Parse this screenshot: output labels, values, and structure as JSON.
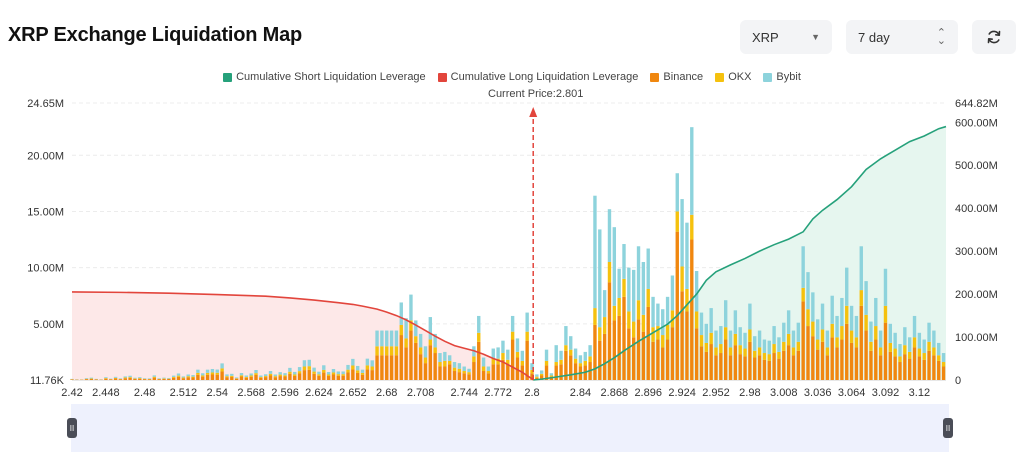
{
  "header": {
    "title": "XRP Exchange Liquidation Map"
  },
  "controls": {
    "coin": {
      "value": "XRP"
    },
    "range": {
      "value": "7 day"
    },
    "refresh_icon": "refresh-icon"
  },
  "colors": {
    "short_line": "#26a17b",
    "short_fill": "#e6f6ef",
    "long_line": "#e2453c",
    "long_fill": "#fde8e8",
    "binance": "#f0870f",
    "okx": "#f5c10e",
    "bybit": "#8dd3dc",
    "price_marker": "#e2453c"
  },
  "chart_data": {
    "type": "bar",
    "legend": [
      {
        "name": "Cumulative Short Liquidation Leverage",
        "color": "#26a17b"
      },
      {
        "name": "Cumulative Long Liquidation Leverage",
        "color": "#e2453c"
      },
      {
        "name": "Binance",
        "color": "#f0870f"
      },
      {
        "name": "OKX",
        "color": "#f5c10e"
      },
      {
        "name": "Bybit",
        "color": "#8dd3dc"
      }
    ],
    "current_price_label": "Current Price:2.801",
    "current_price": 2.801,
    "x_ticks": [
      "2.42",
      "2.448",
      "2.48",
      "2.512",
      "2.54",
      "2.568",
      "2.596",
      "2.624",
      "2.652",
      "2.68",
      "2.708",
      "2.744",
      "2.772",
      "2.8",
      "2.84",
      "2.868",
      "2.896",
      "2.924",
      "2.952",
      "2.98",
      "3.008",
      "3.036",
      "3.064",
      "3.092",
      "3.12"
    ],
    "x_range": [
      2.42,
      3.142
    ],
    "y_left": {
      "ticks": [
        "11.76K",
        "5.00M",
        "10.00M",
        "15.00M",
        "20.00M",
        "24.65M"
      ],
      "tick_values": [
        0.01176,
        5,
        10,
        15,
        20,
        24.65
      ],
      "range": [
        0,
        24.65
      ]
    },
    "y_right": {
      "ticks": [
        "0",
        "100.00M",
        "200.00M",
        "300.00M",
        "400.00M",
        "500.00M",
        "600.00M",
        "644.82M"
      ],
      "tick_values": [
        0,
        100,
        200,
        300,
        400,
        500,
        600,
        644.82
      ],
      "range": [
        0,
        644.82
      ]
    },
    "grid": true,
    "price_step": 0.004,
    "bars": [
      [
        2.42,
        0.05,
        0.02,
        0.03
      ],
      [
        2.424,
        0.03,
        0.01,
        0.02
      ],
      [
        2.428,
        0.03,
        0.01,
        0.01
      ],
      [
        2.432,
        0.08,
        0.03,
        0.06
      ],
      [
        2.436,
        0.09,
        0.04,
        0.08
      ],
      [
        2.44,
        0.05,
        0.02,
        0.03
      ],
      [
        2.444,
        0.03,
        0.01,
        0.02
      ],
      [
        2.448,
        0.12,
        0.05,
        0.08
      ],
      [
        2.452,
        0.06,
        0.02,
        0.04
      ],
      [
        2.456,
        0.14,
        0.05,
        0.09
      ],
      [
        2.46,
        0.07,
        0.03,
        0.05
      ],
      [
        2.464,
        0.16,
        0.06,
        0.1
      ],
      [
        2.468,
        0.19,
        0.07,
        0.12
      ],
      [
        2.472,
        0.1,
        0.04,
        0.06
      ],
      [
        2.476,
        0.12,
        0.05,
        0.08
      ],
      [
        2.48,
        0.08,
        0.03,
        0.05
      ],
      [
        2.484,
        0.07,
        0.03,
        0.05
      ],
      [
        2.488,
        0.21,
        0.08,
        0.12
      ],
      [
        2.492,
        0.08,
        0.03,
        0.05
      ],
      [
        2.496,
        0.1,
        0.04,
        0.07
      ],
      [
        2.5,
        0.09,
        0.03,
        0.06
      ],
      [
        2.504,
        0.2,
        0.07,
        0.12
      ],
      [
        2.508,
        0.29,
        0.1,
        0.19
      ],
      [
        2.512,
        0.16,
        0.06,
        0.1
      ],
      [
        2.516,
        0.25,
        0.09,
        0.15
      ],
      [
        2.52,
        0.22,
        0.08,
        0.14
      ],
      [
        2.524,
        0.46,
        0.17,
        0.29
      ],
      [
        2.528,
        0.3,
        0.11,
        0.19
      ],
      [
        2.532,
        0.46,
        0.17,
        0.29
      ],
      [
        2.536,
        0.49,
        0.18,
        0.31
      ],
      [
        2.54,
        0.47,
        0.17,
        0.29
      ],
      [
        2.544,
        0.76,
        0.27,
        0.45
      ],
      [
        2.548,
        0.25,
        0.09,
        0.16
      ],
      [
        2.552,
        0.27,
        0.1,
        0.18
      ],
      [
        2.556,
        0.12,
        0.04,
        0.07
      ],
      [
        2.56,
        0.31,
        0.11,
        0.2
      ],
      [
        2.564,
        0.2,
        0.07,
        0.13
      ],
      [
        2.568,
        0.29,
        0.11,
        0.18
      ],
      [
        2.572,
        0.45,
        0.16,
        0.28
      ],
      [
        2.576,
        0.2,
        0.07,
        0.13
      ],
      [
        2.58,
        0.26,
        0.09,
        0.16
      ],
      [
        2.584,
        0.4,
        0.15,
        0.25
      ],
      [
        2.588,
        0.25,
        0.09,
        0.15
      ],
      [
        2.592,
        0.35,
        0.13,
        0.22
      ],
      [
        2.596,
        0.31,
        0.11,
        0.19
      ],
      [
        2.6,
        0.54,
        0.2,
        0.34
      ],
      [
        2.604,
        0.36,
        0.13,
        0.23
      ],
      [
        2.608,
        0.58,
        0.21,
        0.36
      ],
      [
        2.612,
        0.88,
        0.32,
        0.56
      ],
      [
        2.616,
        0.9,
        0.33,
        0.57
      ],
      [
        2.62,
        0.55,
        0.2,
        0.35
      ],
      [
        2.624,
        0.37,
        0.14,
        0.23
      ],
      [
        2.628,
        0.66,
        0.24,
        0.41
      ],
      [
        2.632,
        0.36,
        0.13,
        0.22
      ],
      [
        2.636,
        0.49,
        0.18,
        0.31
      ],
      [
        2.64,
        0.38,
        0.14,
        0.24
      ],
      [
        2.644,
        0.38,
        0.14,
        0.24
      ],
      [
        2.648,
        0.67,
        0.25,
        0.42
      ],
      [
        2.652,
        0.94,
        0.35,
        0.59
      ],
      [
        2.656,
        0.63,
        0.23,
        0.39
      ],
      [
        2.66,
        0.46,
        0.17,
        0.29
      ],
      [
        2.664,
        0.95,
        0.35,
        0.6
      ],
      [
        2.668,
        0.88,
        0.32,
        0.55
      ],
      [
        2.672,
        2.2,
        0.8,
        1.4
      ],
      [
        2.676,
        2.2,
        0.8,
        1.4
      ],
      [
        2.68,
        2.2,
        0.8,
        1.4
      ],
      [
        2.684,
        2.2,
        0.8,
        1.4
      ],
      [
        2.688,
        2.2,
        0.8,
        1.4
      ],
      [
        2.692,
        4.0,
        0.9,
        2.0
      ],
      [
        2.696,
        2.9,
        0.8,
        1.8
      ],
      [
        2.7,
        4.4,
        0.9,
        2.3
      ],
      [
        2.704,
        3.3,
        0.6,
        1.4
      ],
      [
        2.708,
        2.3,
        0.6,
        1.2
      ],
      [
        2.712,
        1.5,
        0.5,
        1.0
      ],
      [
        2.716,
        3.1,
        0.5,
        2.0
      ],
      [
        2.72,
        2.4,
        0.5,
        1.2
      ],
      [
        2.724,
        1.2,
        0.4,
        0.8
      ],
      [
        2.728,
        1.2,
        0.5,
        0.8
      ],
      [
        2.732,
        1.4,
        0.3,
        0.5
      ],
      [
        2.736,
        0.8,
        0.3,
        0.5
      ],
      [
        2.74,
        0.7,
        0.3,
        0.5
      ],
      [
        2.744,
        0.6,
        0.2,
        0.4
      ],
      [
        2.748,
        0.5,
        0.2,
        0.3
      ],
      [
        2.752,
        1.6,
        0.5,
        0.9
      ],
      [
        2.756,
        3.4,
        0.8,
        1.5
      ],
      [
        2.76,
        0.8,
        0.4,
        0.8
      ],
      [
        2.764,
        0.6,
        0.2,
        0.4
      ],
      [
        2.768,
        1.4,
        0.5,
        0.9
      ],
      [
        2.772,
        1.4,
        0.5,
        1.0
      ],
      [
        2.776,
        1.8,
        0.6,
        1.1
      ],
      [
        2.78,
        1.4,
        0.4,
        0.9
      ],
      [
        2.784,
        3.6,
        0.7,
        1.4
      ],
      [
        2.788,
        2.0,
        0.5,
        1.2
      ],
      [
        2.792,
        1.3,
        0.4,
        0.9
      ],
      [
        2.796,
        3.5,
        0.8,
        1.7
      ],
      [
        2.8,
        0.6,
        0.3,
        0.6
      ],
      [
        2.804,
        0.2,
        0.1,
        0.2
      ],
      [
        2.808,
        0.4,
        0.15,
        0.3
      ],
      [
        2.812,
        1.3,
        0.4,
        1.0
      ],
      [
        2.816,
        0.3,
        0.1,
        0.2
      ],
      [
        2.82,
        1.3,
        0.3,
        1.5
      ],
      [
        2.824,
        1.4,
        0.4,
        0.8
      ],
      [
        2.828,
        2.6,
        0.5,
        1.7
      ],
      [
        2.832,
        2.2,
        0.5,
        1.2
      ],
      [
        2.836,
        1.5,
        0.4,
        0.9
      ],
      [
        2.84,
        1.2,
        0.3,
        0.7
      ],
      [
        2.844,
        1.3,
        0.4,
        0.8
      ],
      [
        2.848,
        1.6,
        0.5,
        1.0
      ],
      [
        2.852,
        4.9,
        1.5,
        10.0
      ],
      [
        2.856,
        3.5,
        1.2,
        8.7
      ],
      [
        2.86,
        4.1,
        1.5,
        2.4
      ],
      [
        2.864,
        8.7,
        1.8,
        4.7
      ],
      [
        2.868,
        5.3,
        1.3,
        7.0
      ],
      [
        2.872,
        5.7,
        1.6,
        2.6
      ],
      [
        2.876,
        7.4,
        1.6,
        3.1
      ],
      [
        2.88,
        4.6,
        1.5,
        3.9
      ],
      [
        2.884,
        3.8,
        1.4,
        4.6
      ],
      [
        2.888,
        5.4,
        1.7,
        4.8
      ],
      [
        2.892,
        4.3,
        1.5,
        4.7
      ],
      [
        2.896,
        6.5,
        1.6,
        3.6
      ],
      [
        2.9,
        3.4,
        1.3,
        2.7
      ],
      [
        2.904,
        3.6,
        1.2,
        2.0
      ],
      [
        2.908,
        2.9,
        1.1,
        2.3
      ],
      [
        2.912,
        3.6,
        1.3,
        2.5
      ],
      [
        2.916,
        4.7,
        1.5,
        3.1
      ],
      [
        2.92,
        13.2,
        1.8,
        3.4
      ],
      [
        2.924,
        7.9,
        2.2,
        6.0
      ],
      [
        2.928,
        6.1,
        2.0,
        5.9
      ],
      [
        2.932,
        12.5,
        2.2,
        7.8
      ],
      [
        2.936,
        4.6,
        1.5,
        3.6
      ],
      [
        2.94,
        3.0,
        1.0,
        2.0
      ],
      [
        2.944,
        2.5,
        0.8,
        1.7
      ],
      [
        2.948,
        3.2,
        1.0,
        2.2
      ],
      [
        2.952,
        2.2,
        0.7,
        1.5
      ],
      [
        2.956,
        2.4,
        0.8,
        1.6
      ],
      [
        2.96,
        3.6,
        1.1,
        2.4
      ],
      [
        2.964,
        2.2,
        0.7,
        1.5
      ],
      [
        2.968,
        3.1,
        1.0,
        2.1
      ],
      [
        2.972,
        2.3,
        0.8,
        1.6
      ],
      [
        2.976,
        2.1,
        0.7,
        1.4
      ],
      [
        2.98,
        3.4,
        1.1,
        2.3
      ],
      [
        2.984,
        2.0,
        0.6,
        1.3
      ],
      [
        2.988,
        2.2,
        0.7,
        1.5
      ],
      [
        2.992,
        1.8,
        0.6,
        1.2
      ],
      [
        2.996,
        1.7,
        0.6,
        1.2
      ],
      [
        3.0,
        2.4,
        0.8,
        1.6
      ],
      [
        3.004,
        1.9,
        0.6,
        1.3
      ],
      [
        3.008,
        2.6,
        0.8,
        1.7
      ],
      [
        3.012,
        3.1,
        1.0,
        2.1
      ],
      [
        3.016,
        2.2,
        0.7,
        1.5
      ],
      [
        3.02,
        2.6,
        0.8,
        1.7
      ],
      [
        3.024,
        7.0,
        1.2,
        3.7
      ],
      [
        3.028,
        4.8,
        1.5,
        3.3
      ],
      [
        3.032,
        3.9,
        1.3,
        2.6
      ],
      [
        3.036,
        2.7,
        0.9,
        1.8
      ],
      [
        3.04,
        3.4,
        1.1,
        2.3
      ],
      [
        3.044,
        2.2,
        0.7,
        1.5
      ],
      [
        3.048,
        3.8,
        1.2,
        2.5
      ],
      [
        3.052,
        2.9,
        0.9,
        1.9
      ],
      [
        3.056,
        3.6,
        1.2,
        2.5
      ],
      [
        3.06,
        5.0,
        1.6,
        3.4
      ],
      [
        3.064,
        3.3,
        1.1,
        2.2
      ],
      [
        3.068,
        2.9,
        0.9,
        1.9
      ],
      [
        3.072,
        6.6,
        1.4,
        3.9
      ],
      [
        3.076,
        4.4,
        1.4,
        3.0
      ],
      [
        3.08,
        2.6,
        0.8,
        1.8
      ],
      [
        3.084,
        3.6,
        1.2,
        2.5
      ],
      [
        3.088,
        2.2,
        0.7,
        1.5
      ],
      [
        3.092,
        5.1,
        1.5,
        3.3
      ],
      [
        3.096,
        2.5,
        0.8,
        1.7
      ],
      [
        3.1,
        2.1,
        0.7,
        1.4
      ],
      [
        3.104,
        1.6,
        0.5,
        1.1
      ],
      [
        3.108,
        2.3,
        0.8,
        1.6
      ],
      [
        3.112,
        1.9,
        0.6,
        1.3
      ],
      [
        3.116,
        2.9,
        0.9,
        1.9
      ],
      [
        3.12,
        2.1,
        0.7,
        1.4
      ],
      [
        3.124,
        1.8,
        0.6,
        1.2
      ],
      [
        3.128,
        2.6,
        0.8,
        1.7
      ],
      [
        3.132,
        2.2,
        0.7,
        1.5
      ],
      [
        3.136,
        1.7,
        0.5,
        1.1
      ],
      [
        3.14,
        1.2,
        0.4,
        0.8
      ]
    ],
    "series_long": {
      "name": "Cumulative Long Liquidation Leverage",
      "points": [
        [
          2.42,
          205
        ],
        [
          2.46,
          204
        ],
        [
          2.5,
          202
        ],
        [
          2.54,
          199
        ],
        [
          2.58,
          195
        ],
        [
          2.6,
          191
        ],
        [
          2.62,
          186
        ],
        [
          2.64,
          180
        ],
        [
          2.652,
          176
        ],
        [
          2.66,
          172
        ],
        [
          2.672,
          165
        ],
        [
          2.68,
          158
        ],
        [
          2.688,
          150
        ],
        [
          2.696,
          140
        ],
        [
          2.704,
          128
        ],
        [
          2.712,
          115
        ],
        [
          2.72,
          102
        ],
        [
          2.728,
          90
        ],
        [
          2.736,
          80
        ],
        [
          2.744,
          74
        ],
        [
          2.752,
          68
        ],
        [
          2.76,
          60
        ],
        [
          2.768,
          50
        ],
        [
          2.776,
          42
        ],
        [
          2.784,
          30
        ],
        [
          2.792,
          18
        ],
        [
          2.796,
          10
        ],
        [
          2.8,
          3
        ],
        [
          2.801,
          0
        ]
      ]
    },
    "series_short": {
      "name": "Cumulative Short Liquidation Leverage",
      "points": [
        [
          2.801,
          0
        ],
        [
          2.808,
          2
        ],
        [
          2.82,
          7
        ],
        [
          2.832,
          12
        ],
        [
          2.844,
          18
        ],
        [
          2.852,
          26
        ],
        [
          2.86,
          38
        ],
        [
          2.868,
          52
        ],
        [
          2.876,
          68
        ],
        [
          2.888,
          90
        ],
        [
          2.9,
          110
        ],
        [
          2.912,
          130
        ],
        [
          2.92,
          150
        ],
        [
          2.928,
          175
        ],
        [
          2.936,
          200
        ],
        [
          2.944,
          232
        ],
        [
          2.952,
          252
        ],
        [
          2.964,
          268
        ],
        [
          2.976,
          283
        ],
        [
          2.988,
          300
        ],
        [
          3.0,
          315
        ],
        [
          3.012,
          328
        ],
        [
          3.024,
          345
        ],
        [
          3.032,
          375
        ],
        [
          3.04,
          395
        ],
        [
          3.052,
          420
        ],
        [
          3.064,
          450
        ],
        [
          3.076,
          490
        ],
        [
          3.088,
          515
        ],
        [
          3.1,
          535
        ],
        [
          3.112,
          555
        ],
        [
          3.124,
          568
        ],
        [
          3.136,
          585
        ],
        [
          3.142,
          590
        ]
      ]
    }
  }
}
